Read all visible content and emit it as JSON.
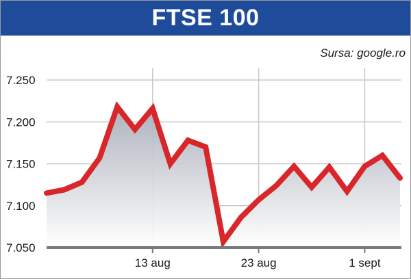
{
  "header": {
    "title": "FTSE 100"
  },
  "source_text": "Sursa: google.ro",
  "colors": {
    "header_bg": "#1e4c9a",
    "line": "#d8262a",
    "grid": "#c8c8c8",
    "axis": "#7a7a7a"
  },
  "chart_data": {
    "type": "area",
    "title": "FTSE 100",
    "xlabel": "",
    "ylabel": "",
    "ylim": [
      7050,
      7250
    ],
    "yticks": [
      7250,
      7200,
      7150,
      7100,
      7050
    ],
    "ytick_labels": [
      "7.250",
      "7.200",
      "7.150",
      "7.100",
      "7.050"
    ],
    "xtick_labels": [
      {
        "index": 6,
        "label": "13 aug"
      },
      {
        "index": 12,
        "label": "23 aug"
      },
      {
        "index": 18,
        "label": "1 sept"
      }
    ],
    "grid": true,
    "series": [
      {
        "values": [
          7115,
          7119,
          7128,
          7157,
          7218,
          7191,
          7216,
          7150,
          7178,
          7170,
          7057,
          7086,
          7107,
          7124,
          7147,
          7122,
          7146,
          7117,
          7147,
          7160,
          7133
        ]
      }
    ]
  }
}
